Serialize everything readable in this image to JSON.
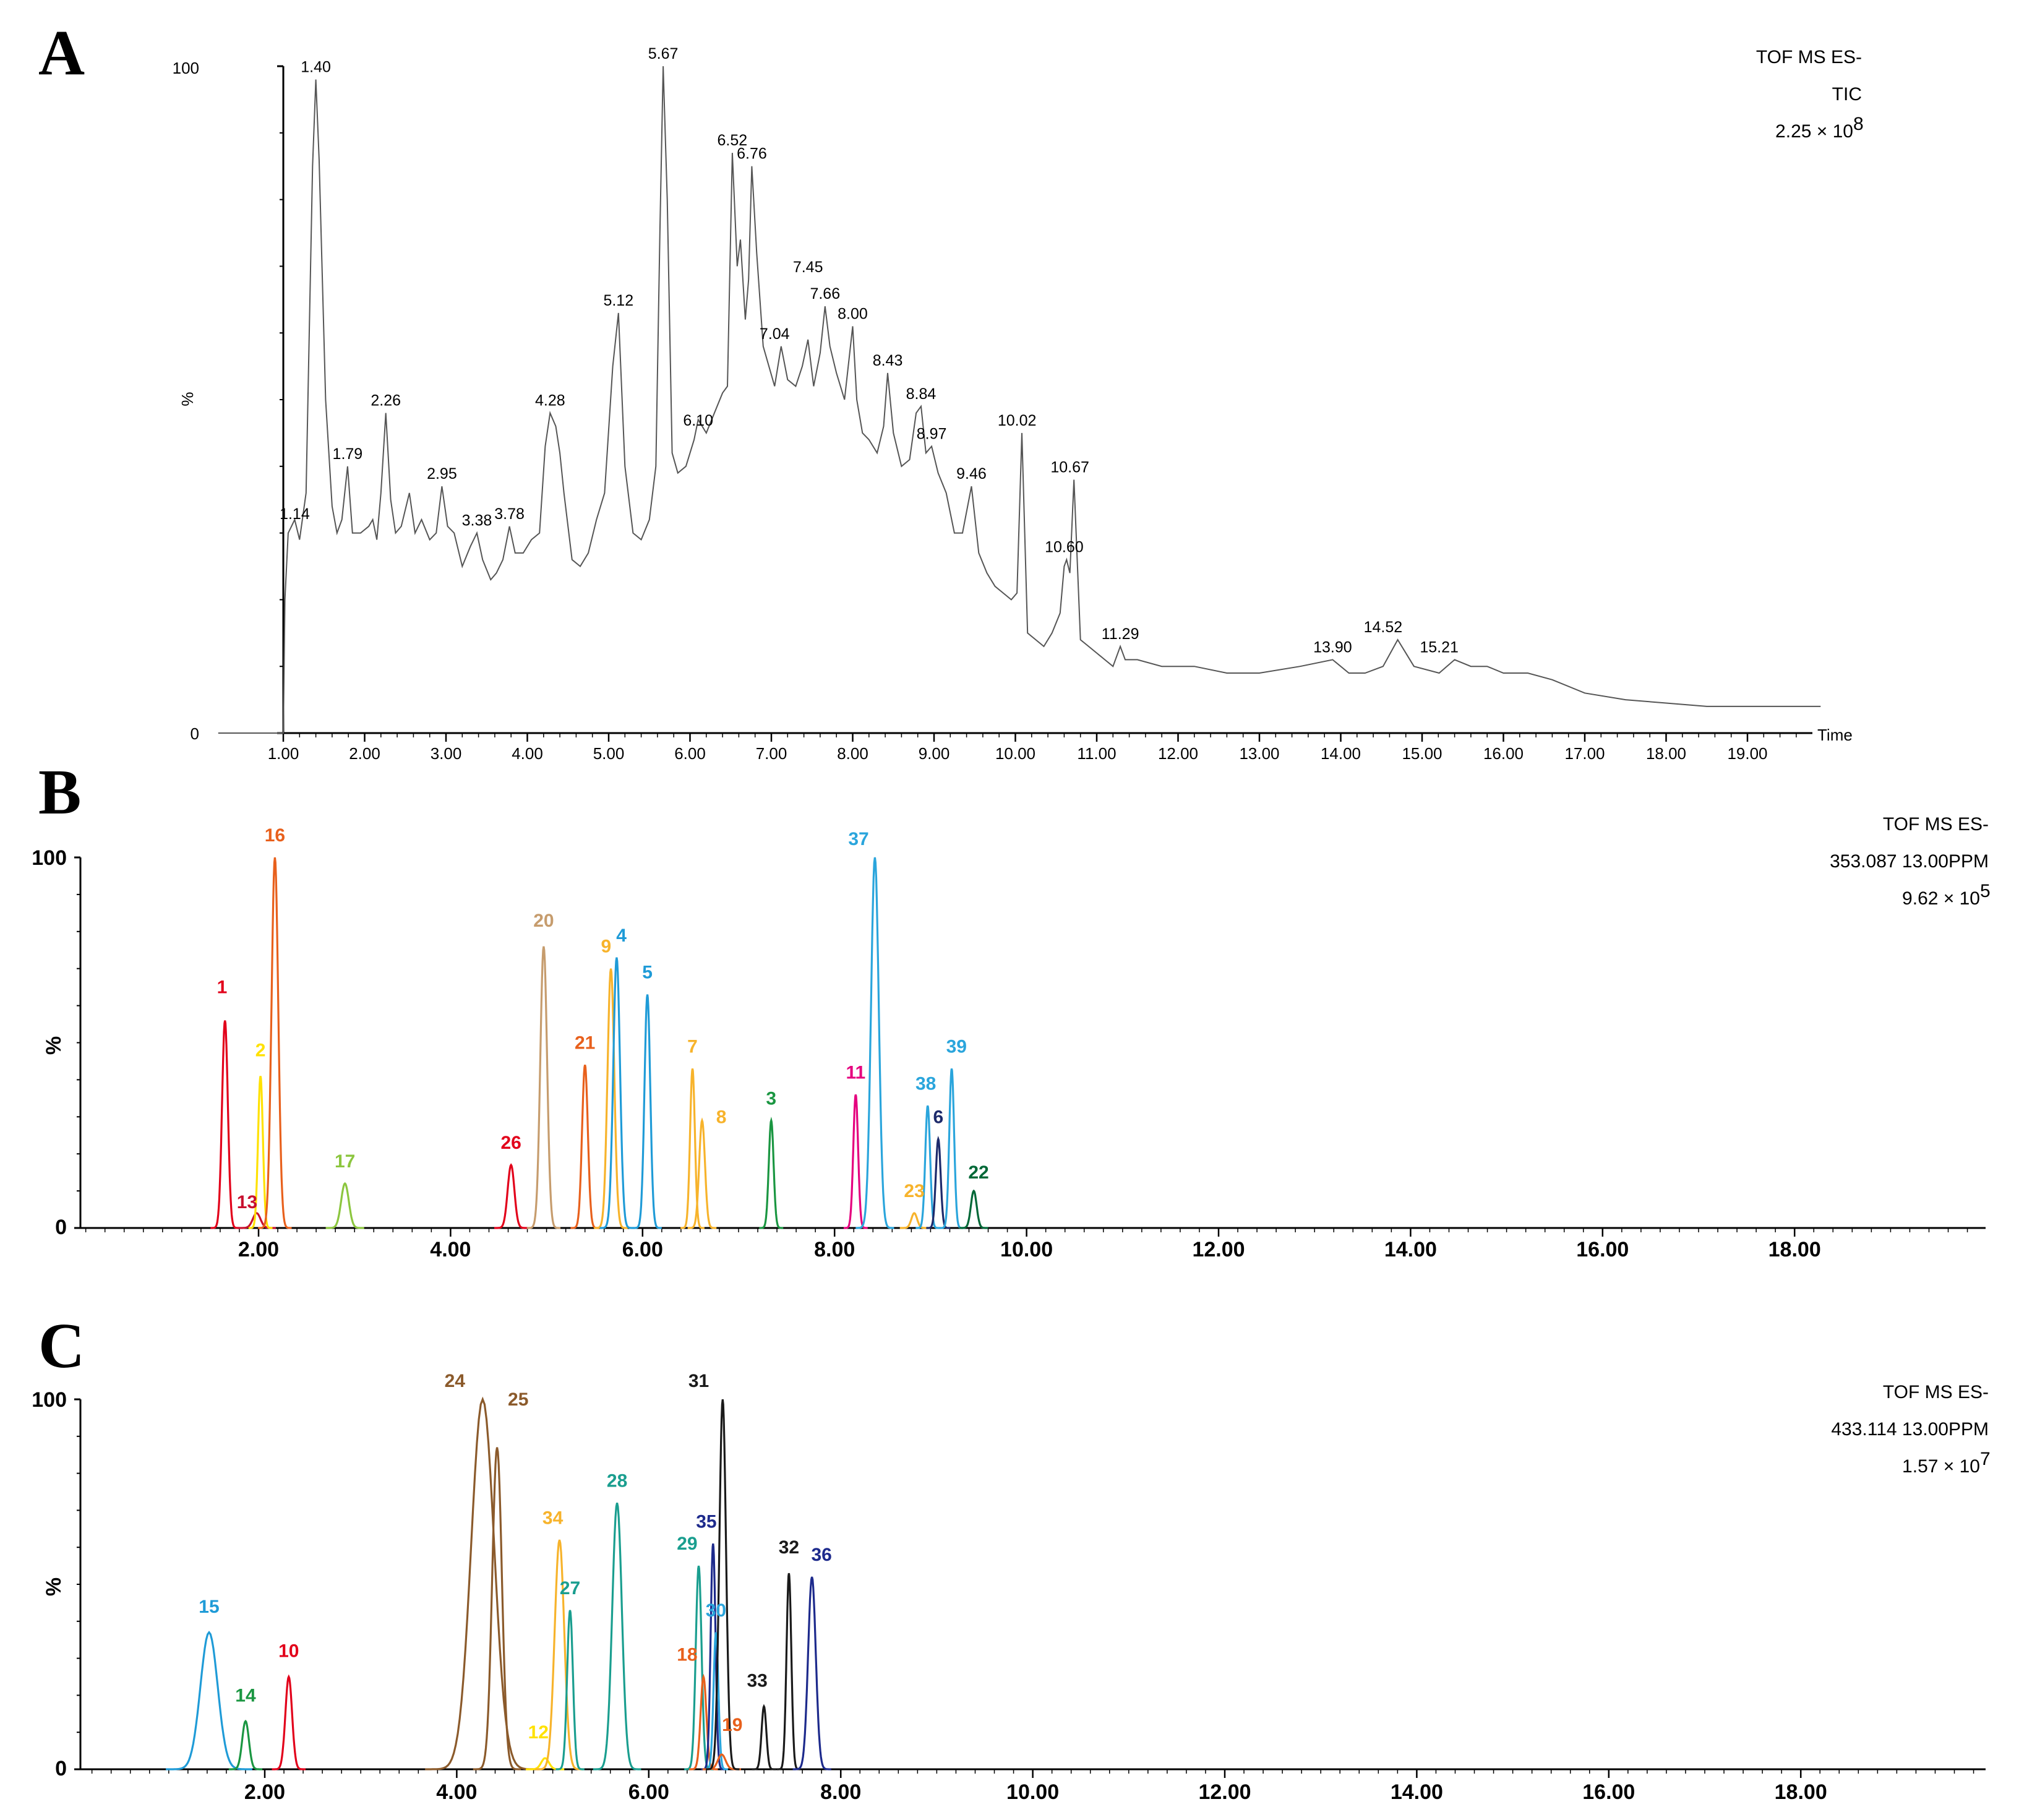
{
  "chart_data": [
    {
      "type": "line",
      "panel_label": "A",
      "title_lines": [
        "TOF MS ES-",
        "TIC"
      ],
      "intensity_mantissa": "2.25 × 10",
      "intensity_exponent": "8",
      "xlabel": "Time",
      "ylabel": "%",
      "xlim": [
        0,
        20
      ],
      "ylim": [
        0,
        100
      ],
      "x_ticks": [
        "1.00",
        "2.00",
        "3.00",
        "4.00",
        "5.00",
        "6.00",
        "7.00",
        "8.00",
        "9.00",
        "10.00",
        "11.00",
        "12.00",
        "13.00",
        "14.00",
        "15.00",
        "16.00",
        "17.00",
        "18.00",
        "19.00"
      ],
      "y_tick_labels": [
        "0",
        "%",
        "100"
      ],
      "trace": {
        "x": [
          0.2,
          1.0,
          1.02,
          1.06,
          1.1,
          1.14,
          1.2,
          1.28,
          1.36,
          1.4,
          1.44,
          1.52,
          1.6,
          1.66,
          1.72,
          1.79,
          1.85,
          1.95,
          2.05,
          2.1,
          2.15,
          2.2,
          2.26,
          2.32,
          2.38,
          2.45,
          2.55,
          2.62,
          2.7,
          2.8,
          2.88,
          2.95,
          3.02,
          3.1,
          3.2,
          3.3,
          3.38,
          3.45,
          3.55,
          3.62,
          3.7,
          3.78,
          3.85,
          3.95,
          4.05,
          4.15,
          4.22,
          4.28,
          4.35,
          4.4,
          4.45,
          4.55,
          4.65,
          4.75,
          4.85,
          4.95,
          5.05,
          5.12,
          5.2,
          5.3,
          5.4,
          5.5,
          5.58,
          5.63,
          5.67,
          5.72,
          5.78,
          5.85,
          5.95,
          6.05,
          6.1,
          6.2,
          6.3,
          6.4,
          6.46,
          6.52,
          6.58,
          6.62,
          6.68,
          6.72,
          6.76,
          6.82,
          6.9,
          7.04,
          7.12,
          7.2,
          7.3,
          7.38,
          7.45,
          7.52,
          7.6,
          7.66,
          7.72,
          7.8,
          7.9,
          8.0,
          8.05,
          8.12,
          8.2,
          8.3,
          8.38,
          8.43,
          8.5,
          8.6,
          8.7,
          8.78,
          8.84,
          8.9,
          8.97,
          9.05,
          9.15,
          9.25,
          9.35,
          9.46,
          9.55,
          9.65,
          9.75,
          9.85,
          9.95,
          10.02,
          10.08,
          10.15,
          10.25,
          10.35,
          10.45,
          10.55,
          10.6,
          10.63,
          10.67,
          10.72,
          10.8,
          10.9,
          11.0,
          11.1,
          11.2,
          11.29,
          11.35,
          11.5,
          11.8,
          12.2,
          12.6,
          13.0,
          13.5,
          13.9,
          14.1,
          14.3,
          14.52,
          14.7,
          14.9,
          15.21,
          15.4,
          15.6,
          15.8,
          16.0,
          16.3,
          16.6,
          17.0,
          17.5,
          18.0,
          18.5,
          19.0,
          19.5,
          19.9
        ],
        "y": [
          0,
          0,
          20,
          30,
          31,
          32,
          29,
          36,
          85,
          98,
          86,
          50,
          34,
          30,
          32,
          40,
          30,
          30,
          31,
          32,
          29,
          36,
          48,
          35,
          30,
          31,
          36,
          30,
          32,
          29,
          30,
          37,
          31,
          30,
          25,
          28,
          30,
          26,
          23,
          24,
          26,
          31,
          27,
          27,
          29,
          30,
          43,
          48,
          46,
          42,
          36,
          26,
          25,
          27,
          32,
          36,
          55,
          63,
          40,
          30,
          29,
          32,
          40,
          75,
          100,
          80,
          42,
          39,
          40,
          44,
          47,
          45,
          48,
          51,
          52,
          87,
          70,
          74,
          62,
          68,
          85,
          72,
          58,
          52,
          58,
          53,
          52,
          55,
          59,
          52,
          57,
          64,
          58,
          54,
          50,
          61,
          50,
          45,
          44,
          42,
          46,
          54,
          45,
          40,
          41,
          48,
          49,
          42,
          43,
          39,
          36,
          30,
          30,
          37,
          27,
          24,
          22,
          21,
          20,
          21,
          45,
          15,
          14,
          13,
          15,
          18,
          25,
          26,
          24,
          38,
          14,
          13,
          12,
          11,
          10,
          13,
          11,
          11,
          10,
          10,
          9,
          9,
          10,
          11,
          9,
          9,
          10,
          14,
          10,
          9,
          11,
          10,
          10,
          9,
          9,
          8,
          6,
          5,
          4.5,
          4,
          4,
          4,
          4
        ]
      },
      "peak_labels": [
        {
          "rt": 1.14,
          "y": 31,
          "label": "1.14"
        },
        {
          "rt": 1.4,
          "y": 98,
          "label": "1.40"
        },
        {
          "rt": 1.79,
          "y": 40,
          "label": "1.79"
        },
        {
          "rt": 2.26,
          "y": 48,
          "label": "2.26"
        },
        {
          "rt": 2.95,
          "y": 37,
          "label": "2.95"
        },
        {
          "rt": 3.38,
          "y": 30,
          "label": "3.38"
        },
        {
          "rt": 3.78,
          "y": 31,
          "label": "3.78"
        },
        {
          "rt": 4.28,
          "y": 48,
          "label": "4.28"
        },
        {
          "rt": 5.12,
          "y": 63,
          "label": "5.12"
        },
        {
          "rt": 5.67,
          "y": 100,
          "label": "5.67"
        },
        {
          "rt": 6.1,
          "y": 45,
          "label": "6.10"
        },
        {
          "rt": 6.52,
          "y": 87,
          "label": "6.52"
        },
        {
          "rt": 6.76,
          "y": 85,
          "label": "6.76"
        },
        {
          "rt": 7.04,
          "y": 58,
          "label": "7.04"
        },
        {
          "rt": 7.45,
          "y": 68,
          "label": "7.45"
        },
        {
          "rt": 7.66,
          "y": 64,
          "label": "7.66"
        },
        {
          "rt": 8.0,
          "y": 61,
          "label": "8.00"
        },
        {
          "rt": 8.43,
          "y": 54,
          "label": "8.43"
        },
        {
          "rt": 8.84,
          "y": 49,
          "label": "8.84"
        },
        {
          "rt": 8.97,
          "y": 43,
          "label": "8.97"
        },
        {
          "rt": 9.46,
          "y": 37,
          "label": "9.46"
        },
        {
          "rt": 10.02,
          "y": 45,
          "label": "10.02"
        },
        {
          "rt": 10.6,
          "y": 26,
          "label": "10.60"
        },
        {
          "rt": 10.67,
          "y": 38,
          "label": "10.67"
        },
        {
          "rt": 11.29,
          "y": 13,
          "label": "11.29"
        },
        {
          "rt": 13.9,
          "y": 11,
          "label": "13.90"
        },
        {
          "rt": 14.52,
          "y": 14,
          "label": "14.52"
        },
        {
          "rt": 15.21,
          "y": 11,
          "label": "15.21"
        }
      ]
    },
    {
      "type": "line",
      "panel_label": "B",
      "title_lines": [
        "TOF MS ES-",
        "353.087 13.00PPM"
      ],
      "intensity_mantissa": "9.62 × 10",
      "intensity_exponent": "5",
      "xlabel": "",
      "ylabel": "%",
      "xlim": [
        0,
        20
      ],
      "ylim": [
        0,
        100
      ],
      "x_ticks": [
        "2.00",
        "4.00",
        "6.00",
        "8.00",
        "10.00",
        "12.00",
        "14.00",
        "16.00",
        "18.00"
      ],
      "y_tick_labels": [
        "0",
        "%",
        "100"
      ],
      "series": [
        {
          "name": "1",
          "rt": 1.65,
          "height": 56,
          "width": 0.03,
          "color": "#e2001a"
        },
        {
          "name": "13",
          "rt": 1.98,
          "height": 4,
          "width": 0.04,
          "color": "#c8102e"
        },
        {
          "name": "2",
          "rt": 2.02,
          "height": 41,
          "width": 0.025,
          "color": "#ffe100"
        },
        {
          "name": "16",
          "rt": 2.17,
          "height": 100,
          "width": 0.035,
          "color": "#e8601c"
        },
        {
          "name": "17",
          "rt": 2.9,
          "height": 12,
          "width": 0.04,
          "color": "#8cc63f"
        },
        {
          "name": "26",
          "rt": 4.63,
          "height": 17,
          "width": 0.035,
          "color": "#e2001a"
        },
        {
          "name": "20",
          "rt": 4.97,
          "height": 76,
          "width": 0.035,
          "color": "#c69c6d"
        },
        {
          "name": "21",
          "rt": 5.4,
          "height": 44,
          "width": 0.03,
          "color": "#e8601c"
        },
        {
          "name": "9",
          "rt": 5.67,
          "height": 70,
          "width": 0.035,
          "color": "#f7b32b"
        },
        {
          "name": "4",
          "rt": 5.73,
          "height": 73,
          "width": 0.035,
          "color": "#1f9bd7"
        },
        {
          "name": "5",
          "rt": 6.05,
          "height": 63,
          "width": 0.03,
          "color": "#1f9bd7"
        },
        {
          "name": "7",
          "rt": 6.52,
          "height": 43,
          "width": 0.025,
          "color": "#f7b32b"
        },
        {
          "name": "8",
          "rt": 6.62,
          "height": 29,
          "width": 0.03,
          "color": "#f7b32b"
        },
        {
          "name": "3",
          "rt": 7.34,
          "height": 29,
          "width": 0.025,
          "color": "#1a9641"
        },
        {
          "name": "11",
          "rt": 8.22,
          "height": 36,
          "width": 0.025,
          "color": "#e5007e"
        },
        {
          "name": "37",
          "rt": 8.42,
          "height": 100,
          "width": 0.04,
          "color": "#2aa5dc"
        },
        {
          "name": "23",
          "rt": 8.83,
          "height": 4,
          "width": 0.03,
          "color": "#f7b32b"
        },
        {
          "name": "38",
          "rt": 8.97,
          "height": 33,
          "width": 0.025,
          "color": "#2aa5dc"
        },
        {
          "name": "6",
          "rt": 9.08,
          "height": 24,
          "width": 0.025,
          "color": "#1d2a6b"
        },
        {
          "name": "39",
          "rt": 9.22,
          "height": 43,
          "width": 0.025,
          "color": "#2aa5dc"
        },
        {
          "name": "22",
          "rt": 9.45,
          "height": 10,
          "width": 0.03,
          "color": "#006837"
        }
      ],
      "peak_labels": [
        {
          "name": "1",
          "rt": 1.62,
          "y": 62,
          "color": "#e2001a"
        },
        {
          "name": "13",
          "rt": 1.88,
          "y": 4,
          "color": "#c8102e"
        },
        {
          "name": "2",
          "rt": 2.02,
          "y": 45,
          "color": "#ffe100"
        },
        {
          "name": "16",
          "rt": 2.17,
          "y": 103,
          "color": "#e8601c"
        },
        {
          "name": "17",
          "rt": 2.9,
          "y": 15,
          "color": "#8cc63f"
        },
        {
          "name": "26",
          "rt": 4.63,
          "y": 20,
          "color": "#e2001a"
        },
        {
          "name": "20",
          "rt": 4.97,
          "y": 80,
          "color": "#c69c6d"
        },
        {
          "name": "21",
          "rt": 5.4,
          "y": 47,
          "color": "#e8601c"
        },
        {
          "name": "9",
          "rt": 5.62,
          "y": 73,
          "color": "#f7b32b"
        },
        {
          "name": "4",
          "rt": 5.78,
          "y": 76,
          "color": "#1f9bd7"
        },
        {
          "name": "5",
          "rt": 6.05,
          "y": 66,
          "color": "#1f9bd7"
        },
        {
          "name": "7",
          "rt": 6.52,
          "y": 46,
          "color": "#f7b32b"
        },
        {
          "name": "8",
          "rt": 6.82,
          "y": 27,
          "color": "#f7b32b"
        },
        {
          "name": "3",
          "rt": 7.34,
          "y": 32,
          "color": "#1a9641"
        },
        {
          "name": "11",
          "rt": 8.22,
          "y": 39,
          "color": "#e5007e"
        },
        {
          "name": "37",
          "rt": 8.25,
          "y": 102,
          "color": "#2aa5dc"
        },
        {
          "name": "23",
          "rt": 8.83,
          "y": 7,
          "color": "#f7b32b"
        },
        {
          "name": "38",
          "rt": 8.95,
          "y": 36,
          "color": "#2aa5dc"
        },
        {
          "name": "6",
          "rt": 9.08,
          "y": 27,
          "color": "#1d2a6b"
        },
        {
          "name": "39",
          "rt": 9.27,
          "y": 46,
          "color": "#2aa5dc"
        },
        {
          "name": "22",
          "rt": 9.5,
          "y": 12,
          "color": "#006837"
        }
      ]
    },
    {
      "type": "line",
      "panel_label": "C",
      "title_lines": [
        "TOF MS ES-",
        "433.114 13.00PPM"
      ],
      "intensity_mantissa": "1.57 × 10",
      "intensity_exponent": "7",
      "xlabel": "",
      "ylabel": "%",
      "xlim": [
        0,
        20
      ],
      "ylim": [
        0,
        100
      ],
      "x_ticks": [
        "2.00",
        "4.00",
        "6.00",
        "8.00",
        "10.00",
        "12.00",
        "14.00",
        "16.00",
        "18.00"
      ],
      "y_tick_labels": [
        "0",
        "%",
        "100"
      ],
      "series": [
        {
          "name": "15",
          "rt": 1.42,
          "height": 37,
          "width": 0.09,
          "color": "#1f9bd7"
        },
        {
          "name": "14",
          "rt": 1.8,
          "height": 13,
          "width": 0.035,
          "color": "#1a9641"
        },
        {
          "name": "10",
          "rt": 2.25,
          "height": 25,
          "width": 0.035,
          "color": "#e2001a"
        },
        {
          "name": "24",
          "rt": 4.27,
          "height": 100,
          "width": 0.12,
          "color": "#8b5a2b"
        },
        {
          "name": "25",
          "rt": 4.42,
          "height": 87,
          "width": 0.05,
          "color": "#8b5a2b"
        },
        {
          "name": "12",
          "rt": 4.92,
          "height": 3,
          "width": 0.04,
          "color": "#ffe100"
        },
        {
          "name": "34",
          "rt": 5.07,
          "height": 62,
          "width": 0.05,
          "color": "#f7b32b"
        },
        {
          "name": "27",
          "rt": 5.18,
          "height": 43,
          "width": 0.03,
          "color": "#1a9e8f"
        },
        {
          "name": "28",
          "rt": 5.67,
          "height": 72,
          "width": 0.05,
          "color": "#1a9e8f"
        },
        {
          "name": "29",
          "rt": 6.52,
          "height": 55,
          "width": 0.03,
          "color": "#1a9e8f"
        },
        {
          "name": "18",
          "rt": 6.57,
          "height": 25,
          "width": 0.03,
          "color": "#e8601c"
        },
        {
          "name": "35",
          "rt": 6.67,
          "height": 61,
          "width": 0.025,
          "color": "#1d2a8c"
        },
        {
          "name": "30",
          "rt": 6.7,
          "height": 37,
          "width": 0.025,
          "color": "#2aa5dc"
        },
        {
          "name": "19",
          "rt": 6.76,
          "height": 4,
          "width": 0.04,
          "color": "#e8601c"
        },
        {
          "name": "31",
          "rt": 6.77,
          "height": 100,
          "width": 0.035,
          "color": "#1a1a1a"
        },
        {
          "name": "33",
          "rt": 7.2,
          "height": 17,
          "width": 0.025,
          "color": "#1a1a1a"
        },
        {
          "name": "32",
          "rt": 7.46,
          "height": 53,
          "width": 0.025,
          "color": "#1a1a1a"
        },
        {
          "name": "36",
          "rt": 7.7,
          "height": 52,
          "width": 0.04,
          "color": "#1d2a8c"
        }
      ],
      "peak_labels": [
        {
          "name": "15",
          "rt": 1.42,
          "y": 41,
          "color": "#1f9bd7"
        },
        {
          "name": "14",
          "rt": 1.8,
          "y": 17,
          "color": "#1a9641"
        },
        {
          "name": "10",
          "rt": 2.25,
          "y": 29,
          "color": "#e2001a"
        },
        {
          "name": "24",
          "rt": 3.98,
          "y": 102,
          "color": "#8b5a2b"
        },
        {
          "name": "25",
          "rt": 4.64,
          "y": 97,
          "color": "#8b5a2b"
        },
        {
          "name": "12",
          "rt": 4.85,
          "y": 7,
          "color": "#ffe100"
        },
        {
          "name": "34",
          "rt": 5.0,
          "y": 65,
          "color": "#f7b32b"
        },
        {
          "name": "27",
          "rt": 5.18,
          "y": 46,
          "color": "#1a9e8f"
        },
        {
          "name": "28",
          "rt": 5.67,
          "y": 75,
          "color": "#1a9e8f"
        },
        {
          "name": "29",
          "rt": 6.4,
          "y": 58,
          "color": "#1a9e8f"
        },
        {
          "name": "18",
          "rt": 6.4,
          "y": 28,
          "color": "#e8601c"
        },
        {
          "name": "35",
          "rt": 6.6,
          "y": 64,
          "color": "#1d2a8c"
        },
        {
          "name": "30",
          "rt": 6.7,
          "y": 40,
          "color": "#2aa5dc"
        },
        {
          "name": "19",
          "rt": 6.87,
          "y": 9,
          "color": "#e8601c"
        },
        {
          "name": "31",
          "rt": 6.52,
          "y": 102,
          "color": "#1a1a1a"
        },
        {
          "name": "33",
          "rt": 7.13,
          "y": 21,
          "color": "#1a1a1a"
        },
        {
          "name": "32",
          "rt": 7.46,
          "y": 57,
          "color": "#1a1a1a"
        },
        {
          "name": "36",
          "rt": 7.8,
          "y": 55,
          "color": "#1d2a8c"
        }
      ]
    }
  ]
}
